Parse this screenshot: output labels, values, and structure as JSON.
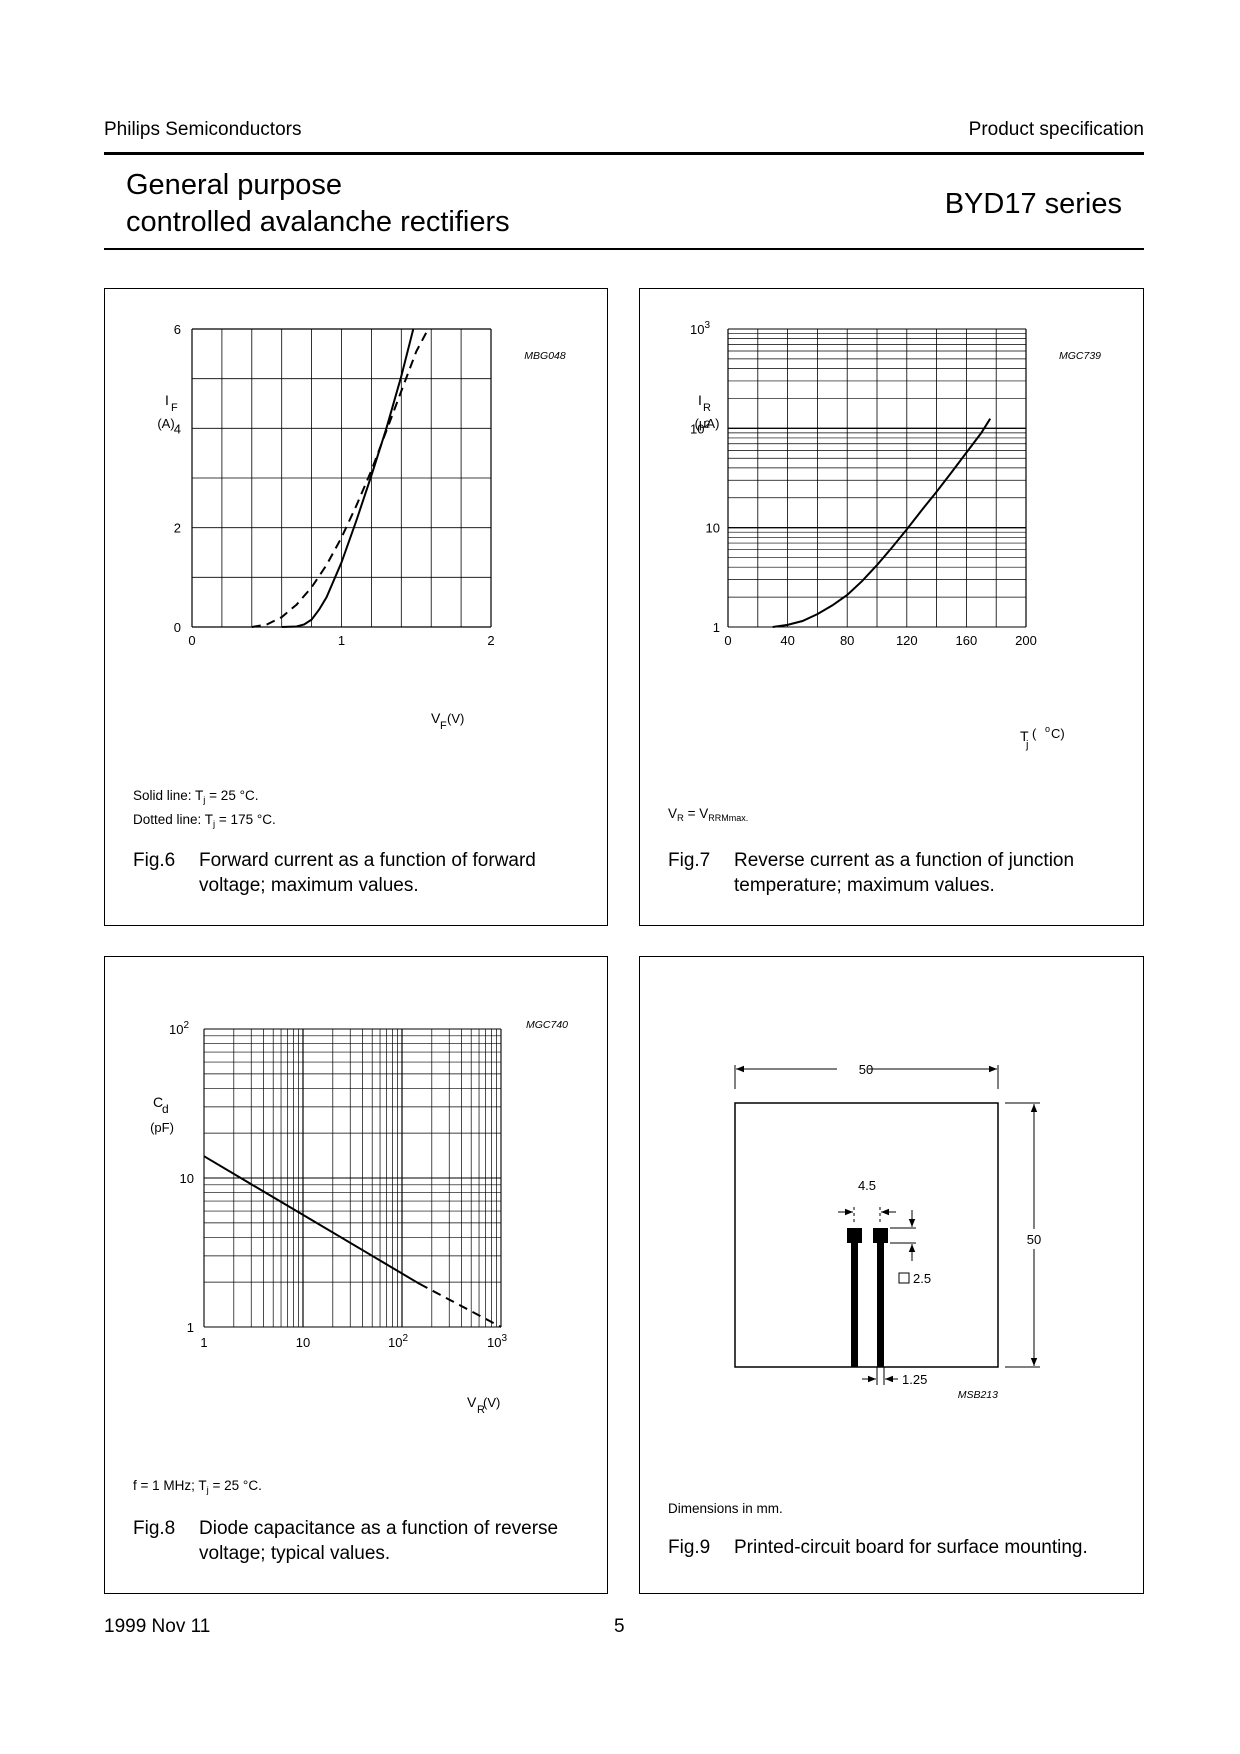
{
  "header": {
    "company": "Philips Semiconductors",
    "doc_type": "Product specification",
    "title_line1": "General purpose",
    "title_line2": "controlled avalanche rectifiers",
    "series": "BYD17 series"
  },
  "footer": {
    "date": "1999 Nov 11",
    "page": "5"
  },
  "figures": {
    "fig6": {
      "code": "MBG048",
      "ylabel_main": "I",
      "ylabel_sub": "F",
      "yunit": "(A)",
      "xlabel_main": "V",
      "xlabel_sub": "F",
      "xunit": " (V)",
      "yticks": [
        "0",
        "2",
        "4",
        "6"
      ],
      "xticks": [
        "0",
        "1",
        "2"
      ],
      "note1_pre": "Solid line: T",
      "note1_sub": "j",
      "note1_post": " = 25 °C.",
      "note2_pre": "Dotted line: T",
      "note2_sub": "j",
      "note2_post": " = 175 °C.",
      "fig_no": "Fig.6",
      "caption": "Forward current as a function of forward voltage; maximum values."
    },
    "fig7": {
      "code": "MGC739",
      "ylabel_main": "I",
      "ylabel_sub": "R",
      "yunit": "(μA)",
      "xlabel_main": "T",
      "xlabel_sub": "j",
      "xunit_pre": " (",
      "xunit_sup": "o",
      "xunit_post": "C)",
      "yticks": [
        "1",
        "10",
        "10",
        "10"
      ],
      "ytick_sups": [
        "",
        "",
        "2",
        "3"
      ],
      "xticks": [
        "0",
        "40",
        "80",
        "120",
        "160",
        "200"
      ],
      "note_pre": "V",
      "note_sub1": "R",
      "note_mid": " = V",
      "note_sub2": "RRMmax.",
      "fig_no": "Fig.7",
      "caption": "Reverse current as a function of junction temperature; maximum values."
    },
    "fig8": {
      "code": "MGC740",
      "ylabel_main": "C",
      "ylabel_sub": "d",
      "yunit": "(pF)",
      "xlabel_main": "V",
      "xlabel_sub": "R",
      "xunit": " (V)",
      "yticks": [
        "1",
        "10",
        "10"
      ],
      "ytick_sups": [
        "",
        "",
        "2"
      ],
      "xticks": [
        "1",
        "10",
        "10",
        "10"
      ],
      "xtick_sups": [
        "",
        "",
        "2",
        "3"
      ],
      "note_pre": "f = 1 MHz; T",
      "note_sub": "j",
      "note_post": " = 25 °C.",
      "fig_no": "Fig.8",
      "caption": "Diode capacitance as a function of reverse voltage; typical values."
    },
    "fig9": {
      "code": "MSB213",
      "dim_width": "50",
      "dim_height": "50",
      "dim_pitch": "4.5",
      "dim_pad": "2.5",
      "dim_track": "1.25",
      "note": "Dimensions in mm.",
      "fig_no": "Fig.9",
      "caption": "Printed-circuit board for surface mounting."
    }
  },
  "chart_data": [
    {
      "id": "fig6",
      "type": "line",
      "xlabel": "VF (V)",
      "ylabel": "IF (A)",
      "xlim": [
        0,
        2
      ],
      "ylim": [
        0,
        6
      ],
      "grid": true,
      "series": [
        {
          "name": "Solid line: Tj = 25 °C.",
          "style": "solid",
          "x": [
            0.6,
            0.7,
            0.75,
            0.8,
            0.85,
            0.9,
            1.0,
            1.1,
            1.2,
            1.3,
            1.4,
            1.48
          ],
          "y": [
            0,
            0.01,
            0.05,
            0.15,
            0.35,
            0.6,
            1.3,
            2.15,
            3.05,
            4.0,
            5.05,
            6.0
          ]
        },
        {
          "name": "Dotted line: Tj = 175 °C.",
          "style": "dashed",
          "x": [
            0.4,
            0.5,
            0.6,
            0.7,
            0.8,
            0.9,
            1.0,
            1.1,
            1.2,
            1.3,
            1.4,
            1.5,
            1.58
          ],
          "y": [
            0,
            0.05,
            0.2,
            0.45,
            0.8,
            1.25,
            1.8,
            2.45,
            3.15,
            3.95,
            4.75,
            5.55,
            6.0
          ]
        }
      ]
    },
    {
      "id": "fig7",
      "type": "line",
      "xlabel": "Tj (oC)",
      "ylabel": "IR (μA)",
      "xlim": [
        0,
        200
      ],
      "ylim": [
        1,
        1000
      ],
      "yscale": "log",
      "grid": true,
      "series": [
        {
          "style": "solid",
          "x": [
            30,
            40,
            50,
            60,
            70,
            80,
            90,
            100,
            110,
            120,
            130,
            140,
            150,
            160,
            170,
            176
          ],
          "y": [
            1,
            1.05,
            1.15,
            1.35,
            1.65,
            2.1,
            2.9,
            4.2,
            6.3,
            9.6,
            15,
            23,
            36,
            57,
            90,
            125
          ]
        }
      ]
    },
    {
      "id": "fig8",
      "type": "line",
      "xlabel": "VR (V)",
      "ylabel": "Cd (pF)",
      "xlim": [
        1,
        1000
      ],
      "ylim": [
        1,
        100
      ],
      "xscale": "log",
      "yscale": "log",
      "grid": true,
      "series": [
        {
          "style": "solid",
          "x": [
            1,
            150
          ],
          "y": [
            14,
            1.95
          ]
        },
        {
          "style": "dashed",
          "x": [
            150,
            1000
          ],
          "y": [
            1.95,
            1
          ]
        }
      ]
    }
  ]
}
